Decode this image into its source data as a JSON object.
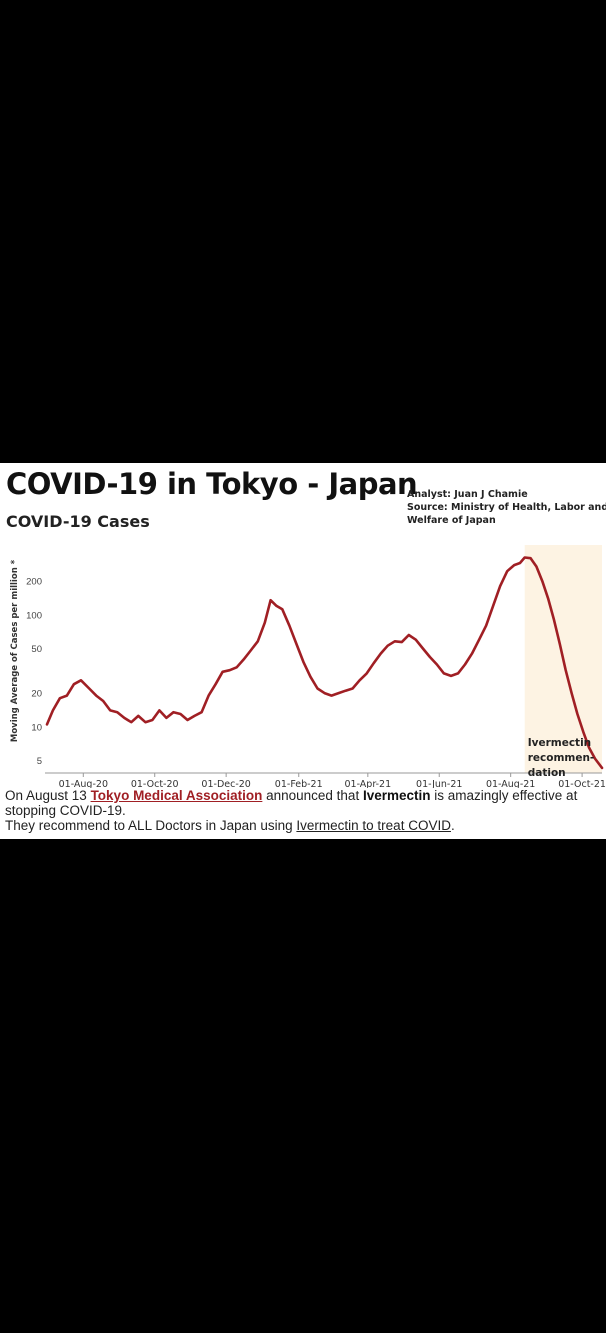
{
  "header": {
    "title": "COVID-19 in Tokyo - Japan",
    "subtitle": "COVID-19 Cases",
    "analyst": "Analyst: Juan J Chamie",
    "source_line1": "Source: Ministry of Health, Labor and",
    "source_line2": "Welfare of Japan"
  },
  "caption": {
    "part1": "On August 13 ",
    "org_link": "Tokyo Medical Association",
    "part2": " announced that ",
    "drug": "Ivermectin",
    "part3": " is amazingly effective at stopping COVID-19.",
    "line2_start": "They recommend to ALL Doctors in Japan using ",
    "treat_link": "Ivermectin to treat COVID",
    "line2_end": "."
  },
  "colors": {
    "line": "#a01f24",
    "highlight": "#fdf3e3"
  },
  "chart_data": {
    "type": "line",
    "ylabel": "Moving Average of Cases per million *",
    "yscale": "log",
    "yticks": [
      5,
      10,
      20,
      50,
      100,
      200
    ],
    "ylim": [
      4.2,
      420
    ],
    "xlim": [
      "2020-07-01",
      "2021-10-18"
    ],
    "xticks": [
      {
        "date": "2020-08-01",
        "label": "01-Aug-20"
      },
      {
        "date": "2020-10-01",
        "label": "01-Oct-20"
      },
      {
        "date": "2020-12-01",
        "label": "01-Dec-20"
      },
      {
        "date": "2021-02-01",
        "label": "01-Feb-21"
      },
      {
        "date": "2021-04-01",
        "label": "01-Apr-21"
      },
      {
        "date": "2021-06-01",
        "label": "01-Jun-21"
      },
      {
        "date": "2021-08-01",
        "label": "01-Aug-21"
      },
      {
        "date": "2021-10-01",
        "label": "01-Oct-21"
      }
    ],
    "annotation": {
      "lines": [
        "Ivermectin",
        "recommen-",
        "dation"
      ],
      "start": "2021-08-13"
    },
    "series": [
      {
        "points": [
          [
            "2020-07-01",
            10.5
          ],
          [
            "2020-07-06",
            14
          ],
          [
            "2020-07-12",
            18
          ],
          [
            "2020-07-18",
            19
          ],
          [
            "2020-07-24",
            24
          ],
          [
            "2020-07-30",
            26
          ],
          [
            "2020-08-06",
            22
          ],
          [
            "2020-08-12",
            19
          ],
          [
            "2020-08-18",
            17
          ],
          [
            "2020-08-24",
            14
          ],
          [
            "2020-08-30",
            13.5
          ],
          [
            "2020-09-05",
            12
          ],
          [
            "2020-09-11",
            11
          ],
          [
            "2020-09-17",
            12.5
          ],
          [
            "2020-09-23",
            11
          ],
          [
            "2020-09-29",
            11.5
          ],
          [
            "2020-10-05",
            14
          ],
          [
            "2020-10-11",
            12
          ],
          [
            "2020-10-17",
            13.5
          ],
          [
            "2020-10-23",
            13
          ],
          [
            "2020-10-29",
            11.5
          ],
          [
            "2020-11-04",
            12.5
          ],
          [
            "2020-11-10",
            13.5
          ],
          [
            "2020-11-16",
            19
          ],
          [
            "2020-11-22",
            24
          ],
          [
            "2020-11-28",
            31
          ],
          [
            "2020-12-04",
            32
          ],
          [
            "2020-12-10",
            34
          ],
          [
            "2020-12-16",
            40
          ],
          [
            "2020-12-22",
            48
          ],
          [
            "2020-12-28",
            58
          ],
          [
            "2021-01-03",
            85
          ],
          [
            "2021-01-08",
            135
          ],
          [
            "2021-01-13",
            120
          ],
          [
            "2021-01-18",
            112
          ],
          [
            "2021-01-24",
            80
          ],
          [
            "2021-01-30",
            55
          ],
          [
            "2021-02-05",
            38
          ],
          [
            "2021-02-11",
            28
          ],
          [
            "2021-02-17",
            22
          ],
          [
            "2021-02-23",
            20
          ],
          [
            "2021-03-01",
            19
          ],
          [
            "2021-03-07",
            20
          ],
          [
            "2021-03-13",
            21
          ],
          [
            "2021-03-19",
            22
          ],
          [
            "2021-03-25",
            26
          ],
          [
            "2021-03-31",
            30
          ],
          [
            "2021-04-06",
            37
          ],
          [
            "2021-04-12",
            45
          ],
          [
            "2021-04-18",
            53
          ],
          [
            "2021-04-24",
            58
          ],
          [
            "2021-04-30",
            57
          ],
          [
            "2021-05-06",
            66
          ],
          [
            "2021-05-12",
            60
          ],
          [
            "2021-05-18",
            50
          ],
          [
            "2021-05-24",
            42
          ],
          [
            "2021-05-30",
            36
          ],
          [
            "2021-06-05",
            30
          ],
          [
            "2021-06-11",
            28.5
          ],
          [
            "2021-06-17",
            30
          ],
          [
            "2021-06-23",
            36
          ],
          [
            "2021-06-29",
            45
          ],
          [
            "2021-07-05",
            60
          ],
          [
            "2021-07-11",
            80
          ],
          [
            "2021-07-17",
            120
          ],
          [
            "2021-07-23",
            180
          ],
          [
            "2021-07-29",
            245
          ],
          [
            "2021-08-04",
            278
          ],
          [
            "2021-08-09",
            290
          ],
          [
            "2021-08-13",
            325
          ],
          [
            "2021-08-18",
            320
          ],
          [
            "2021-08-23",
            270
          ],
          [
            "2021-08-28",
            200
          ],
          [
            "2021-09-02",
            140
          ],
          [
            "2021-09-07",
            90
          ],
          [
            "2021-09-12",
            55
          ],
          [
            "2021-09-17",
            32
          ],
          [
            "2021-09-22",
            20
          ],
          [
            "2021-09-27",
            13
          ],
          [
            "2021-10-02",
            9
          ],
          [
            "2021-10-07",
            6.5
          ],
          [
            "2021-10-12",
            5.2
          ],
          [
            "2021-10-18",
            4.3
          ]
        ]
      }
    ]
  }
}
